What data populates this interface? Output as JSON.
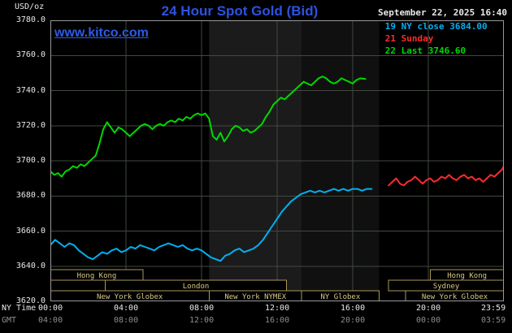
{
  "header": {
    "title": "24 Hour Spot Gold (Bid)",
    "datetime": "September 22, 2025 16:40",
    "watermark": "www.kitco.com"
  },
  "legend": [
    {
      "text": "- Sep 19 NY close 3684.00",
      "color": "#00b0f0"
    },
    {
      "text": "- Sep 21 Sunday",
      "color": "#ff2a2a"
    },
    {
      "text": "- Sep 22 Last 3746.60",
      "color": "#00d800"
    }
  ],
  "axes": {
    "y_unit": "USD/oz",
    "row_labels": [
      "NY Time",
      "GMT"
    ],
    "y_ticks": [
      3780,
      3760,
      3740,
      3720,
      3700,
      3680,
      3660,
      3640,
      3620
    ],
    "x_ticks": [
      {
        "h": 0,
        "ny": "00:00",
        "gmt": "04:00"
      },
      {
        "h": 4,
        "ny": "04:00",
        "gmt": "08:00"
      },
      {
        "h": 8,
        "ny": "08:00",
        "gmt": "12:00"
      },
      {
        "h": 12,
        "ny": "12:00",
        "gmt": "16:00"
      },
      {
        "h": 16,
        "ny": "16:00",
        "gmt": "20:00"
      },
      {
        "h": 20,
        "ny": "20:00",
        "gmt": "00:00"
      },
      {
        "h": 24,
        "ny": "23:59",
        "gmt": "03:59"
      }
    ]
  },
  "chart_data": {
    "type": "line",
    "title": "24 Hour Spot Gold (Bid)",
    "xlabel": "NY Time (hours 00:00 - 23:59)",
    "ylabel": "USD/oz",
    "xlim": [
      0,
      24
    ],
    "ylim": [
      3620,
      3780
    ],
    "grid_color": "#41493f",
    "border_color": "#999999",
    "session_border_color": "#a89858",
    "session_text_color": "#d8c888",
    "bands": [
      {
        "start": 8.4,
        "end": 13.3,
        "color": "#1b1b1b"
      },
      {
        "start": 13.3,
        "end": 17.4,
        "color": "#101010"
      }
    ],
    "series": [
      {
        "name": "Sep 19 NY close 3684.00",
        "color": "#00b0f0",
        "points": [
          [
            0,
            3652
          ],
          [
            0.25,
            3655
          ],
          [
            0.5,
            3653
          ],
          [
            0.75,
            3651
          ],
          [
            1,
            3653
          ],
          [
            1.25,
            3652
          ],
          [
            1.5,
            3649
          ],
          [
            1.75,
            3647
          ],
          [
            2,
            3645
          ],
          [
            2.25,
            3644
          ],
          [
            2.5,
            3646
          ],
          [
            2.75,
            3648
          ],
          [
            3,
            3647
          ],
          [
            3.25,
            3649
          ],
          [
            3.5,
            3650
          ],
          [
            3.75,
            3648
          ],
          [
            4,
            3649
          ],
          [
            4.25,
            3651
          ],
          [
            4.5,
            3650
          ],
          [
            4.75,
            3652
          ],
          [
            5,
            3651
          ],
          [
            5.25,
            3650
          ],
          [
            5.5,
            3649
          ],
          [
            5.75,
            3651
          ],
          [
            6,
            3652
          ],
          [
            6.25,
            3653
          ],
          [
            6.5,
            3652
          ],
          [
            6.75,
            3651
          ],
          [
            7,
            3652
          ],
          [
            7.25,
            3650
          ],
          [
            7.5,
            3649
          ],
          [
            7.75,
            3650
          ],
          [
            8,
            3649
          ],
          [
            8.25,
            3647
          ],
          [
            8.5,
            3645
          ],
          [
            8.75,
            3644
          ],
          [
            9,
            3643
          ],
          [
            9.25,
            3646
          ],
          [
            9.5,
            3647
          ],
          [
            9.75,
            3649
          ],
          [
            10,
            3650
          ],
          [
            10.25,
            3648
          ],
          [
            10.5,
            3649
          ],
          [
            10.75,
            3650
          ],
          [
            11,
            3652
          ],
          [
            11.25,
            3655
          ],
          [
            11.5,
            3659
          ],
          [
            11.75,
            3663
          ],
          [
            12,
            3667
          ],
          [
            12.25,
            3671
          ],
          [
            12.5,
            3674
          ],
          [
            12.75,
            3677
          ],
          [
            13,
            3679
          ],
          [
            13.25,
            3681
          ],
          [
            13.5,
            3682
          ],
          [
            13.75,
            3683
          ],
          [
            14,
            3682
          ],
          [
            14.25,
            3683
          ],
          [
            14.5,
            3682
          ],
          [
            14.75,
            3683
          ],
          [
            15,
            3684
          ],
          [
            15.25,
            3683
          ],
          [
            15.5,
            3684
          ],
          [
            15.75,
            3683
          ],
          [
            16,
            3684
          ],
          [
            16.25,
            3684
          ],
          [
            16.5,
            3683
          ],
          [
            16.75,
            3684
          ],
          [
            17,
            3684
          ]
        ]
      },
      {
        "name": "Sep 21 Sunday",
        "color": "#ff2a2a",
        "points": [
          [
            17.9,
            3686
          ],
          [
            18.1,
            3688
          ],
          [
            18.3,
            3690
          ],
          [
            18.5,
            3687
          ],
          [
            18.7,
            3686
          ],
          [
            18.9,
            3688
          ],
          [
            19.1,
            3689
          ],
          [
            19.3,
            3691
          ],
          [
            19.5,
            3689
          ],
          [
            19.7,
            3687
          ],
          [
            19.9,
            3689
          ],
          [
            20.1,
            3690
          ],
          [
            20.3,
            3688
          ],
          [
            20.5,
            3689
          ],
          [
            20.7,
            3691
          ],
          [
            20.9,
            3690
          ],
          [
            21.1,
            3692
          ],
          [
            21.3,
            3690
          ],
          [
            21.5,
            3689
          ],
          [
            21.7,
            3691
          ],
          [
            21.9,
            3692
          ],
          [
            22.1,
            3690
          ],
          [
            22.3,
            3691
          ],
          [
            22.5,
            3689
          ],
          [
            22.7,
            3690
          ],
          [
            22.9,
            3688
          ],
          [
            23.1,
            3690
          ],
          [
            23.3,
            3692
          ],
          [
            23.5,
            3691
          ],
          [
            23.7,
            3693
          ],
          [
            23.9,
            3695
          ],
          [
            24,
            3697
          ]
        ]
      },
      {
        "name": "Sep 22 Last 3746.60",
        "color": "#00d800",
        "points": [
          [
            0,
            3694
          ],
          [
            0.2,
            3692
          ],
          [
            0.4,
            3693
          ],
          [
            0.6,
            3691
          ],
          [
            0.8,
            3694
          ],
          [
            1,
            3695
          ],
          [
            1.2,
            3697
          ],
          [
            1.4,
            3696
          ],
          [
            1.6,
            3698
          ],
          [
            1.8,
            3697
          ],
          [
            2,
            3699
          ],
          [
            2.2,
            3701
          ],
          [
            2.4,
            3703
          ],
          [
            2.6,
            3710
          ],
          [
            2.8,
            3718
          ],
          [
            3,
            3722
          ],
          [
            3.2,
            3719
          ],
          [
            3.4,
            3716
          ],
          [
            3.6,
            3719
          ],
          [
            3.8,
            3718
          ],
          [
            4,
            3716
          ],
          [
            4.2,
            3714
          ],
          [
            4.4,
            3716
          ],
          [
            4.6,
            3718
          ],
          [
            4.8,
            3720
          ],
          [
            5,
            3721
          ],
          [
            5.2,
            3720
          ],
          [
            5.4,
            3718
          ],
          [
            5.6,
            3720
          ],
          [
            5.8,
            3721
          ],
          [
            6,
            3720
          ],
          [
            6.2,
            3722
          ],
          [
            6.4,
            3723
          ],
          [
            6.6,
            3722
          ],
          [
            6.8,
            3724
          ],
          [
            7,
            3723
          ],
          [
            7.2,
            3725
          ],
          [
            7.4,
            3724
          ],
          [
            7.6,
            3726
          ],
          [
            7.8,
            3727
          ],
          [
            8,
            3726
          ],
          [
            8.2,
            3727
          ],
          [
            8.4,
            3724
          ],
          [
            8.6,
            3714
          ],
          [
            8.8,
            3712
          ],
          [
            9,
            3716
          ],
          [
            9.2,
            3711
          ],
          [
            9.4,
            3714
          ],
          [
            9.6,
            3718
          ],
          [
            9.8,
            3720
          ],
          [
            10,
            3719
          ],
          [
            10.2,
            3717
          ],
          [
            10.4,
            3718
          ],
          [
            10.6,
            3716
          ],
          [
            10.8,
            3717
          ],
          [
            11,
            3719
          ],
          [
            11.2,
            3721
          ],
          [
            11.4,
            3725
          ],
          [
            11.6,
            3728
          ],
          [
            11.8,
            3732
          ],
          [
            12,
            3734
          ],
          [
            12.2,
            3736
          ],
          [
            12.4,
            3735
          ],
          [
            12.6,
            3737
          ],
          [
            12.8,
            3739
          ],
          [
            13,
            3741
          ],
          [
            13.2,
            3743
          ],
          [
            13.4,
            3745
          ],
          [
            13.6,
            3744
          ],
          [
            13.8,
            3743
          ],
          [
            14,
            3745
          ],
          [
            14.2,
            3747
          ],
          [
            14.4,
            3748
          ],
          [
            14.6,
            3747
          ],
          [
            14.8,
            3745
          ],
          [
            15,
            3744
          ],
          [
            15.2,
            3745
          ],
          [
            15.4,
            3747
          ],
          [
            15.6,
            3746
          ],
          [
            15.8,
            3745
          ],
          [
            16,
            3744
          ],
          [
            16.2,
            3746
          ],
          [
            16.4,
            3747
          ],
          [
            16.67,
            3746.6
          ]
        ]
      }
    ],
    "sessions": [
      {
        "row": 0,
        "start": 0,
        "end": 4.9,
        "label": "Hong Kong"
      },
      {
        "row": 0,
        "start": 20.1,
        "end": 24,
        "label": "Hong Kong"
      },
      {
        "row": 1,
        "start": 2.9,
        "end": 12.5,
        "label": "London"
      },
      {
        "row": 1,
        "start": 17.9,
        "end": 24,
        "label": "Sydney"
      },
      {
        "row": 2,
        "start": 0,
        "end": 8.4,
        "label": "New York Globex"
      },
      {
        "row": 2,
        "start": 8.4,
        "end": 13.3,
        "label": "New York NYMEX"
      },
      {
        "row": 2,
        "start": 13.3,
        "end": 17.4,
        "label": "NY Globex"
      },
      {
        "row": 2,
        "start": 18.8,
        "end": 24,
        "label": "New York Globex"
      }
    ]
  }
}
